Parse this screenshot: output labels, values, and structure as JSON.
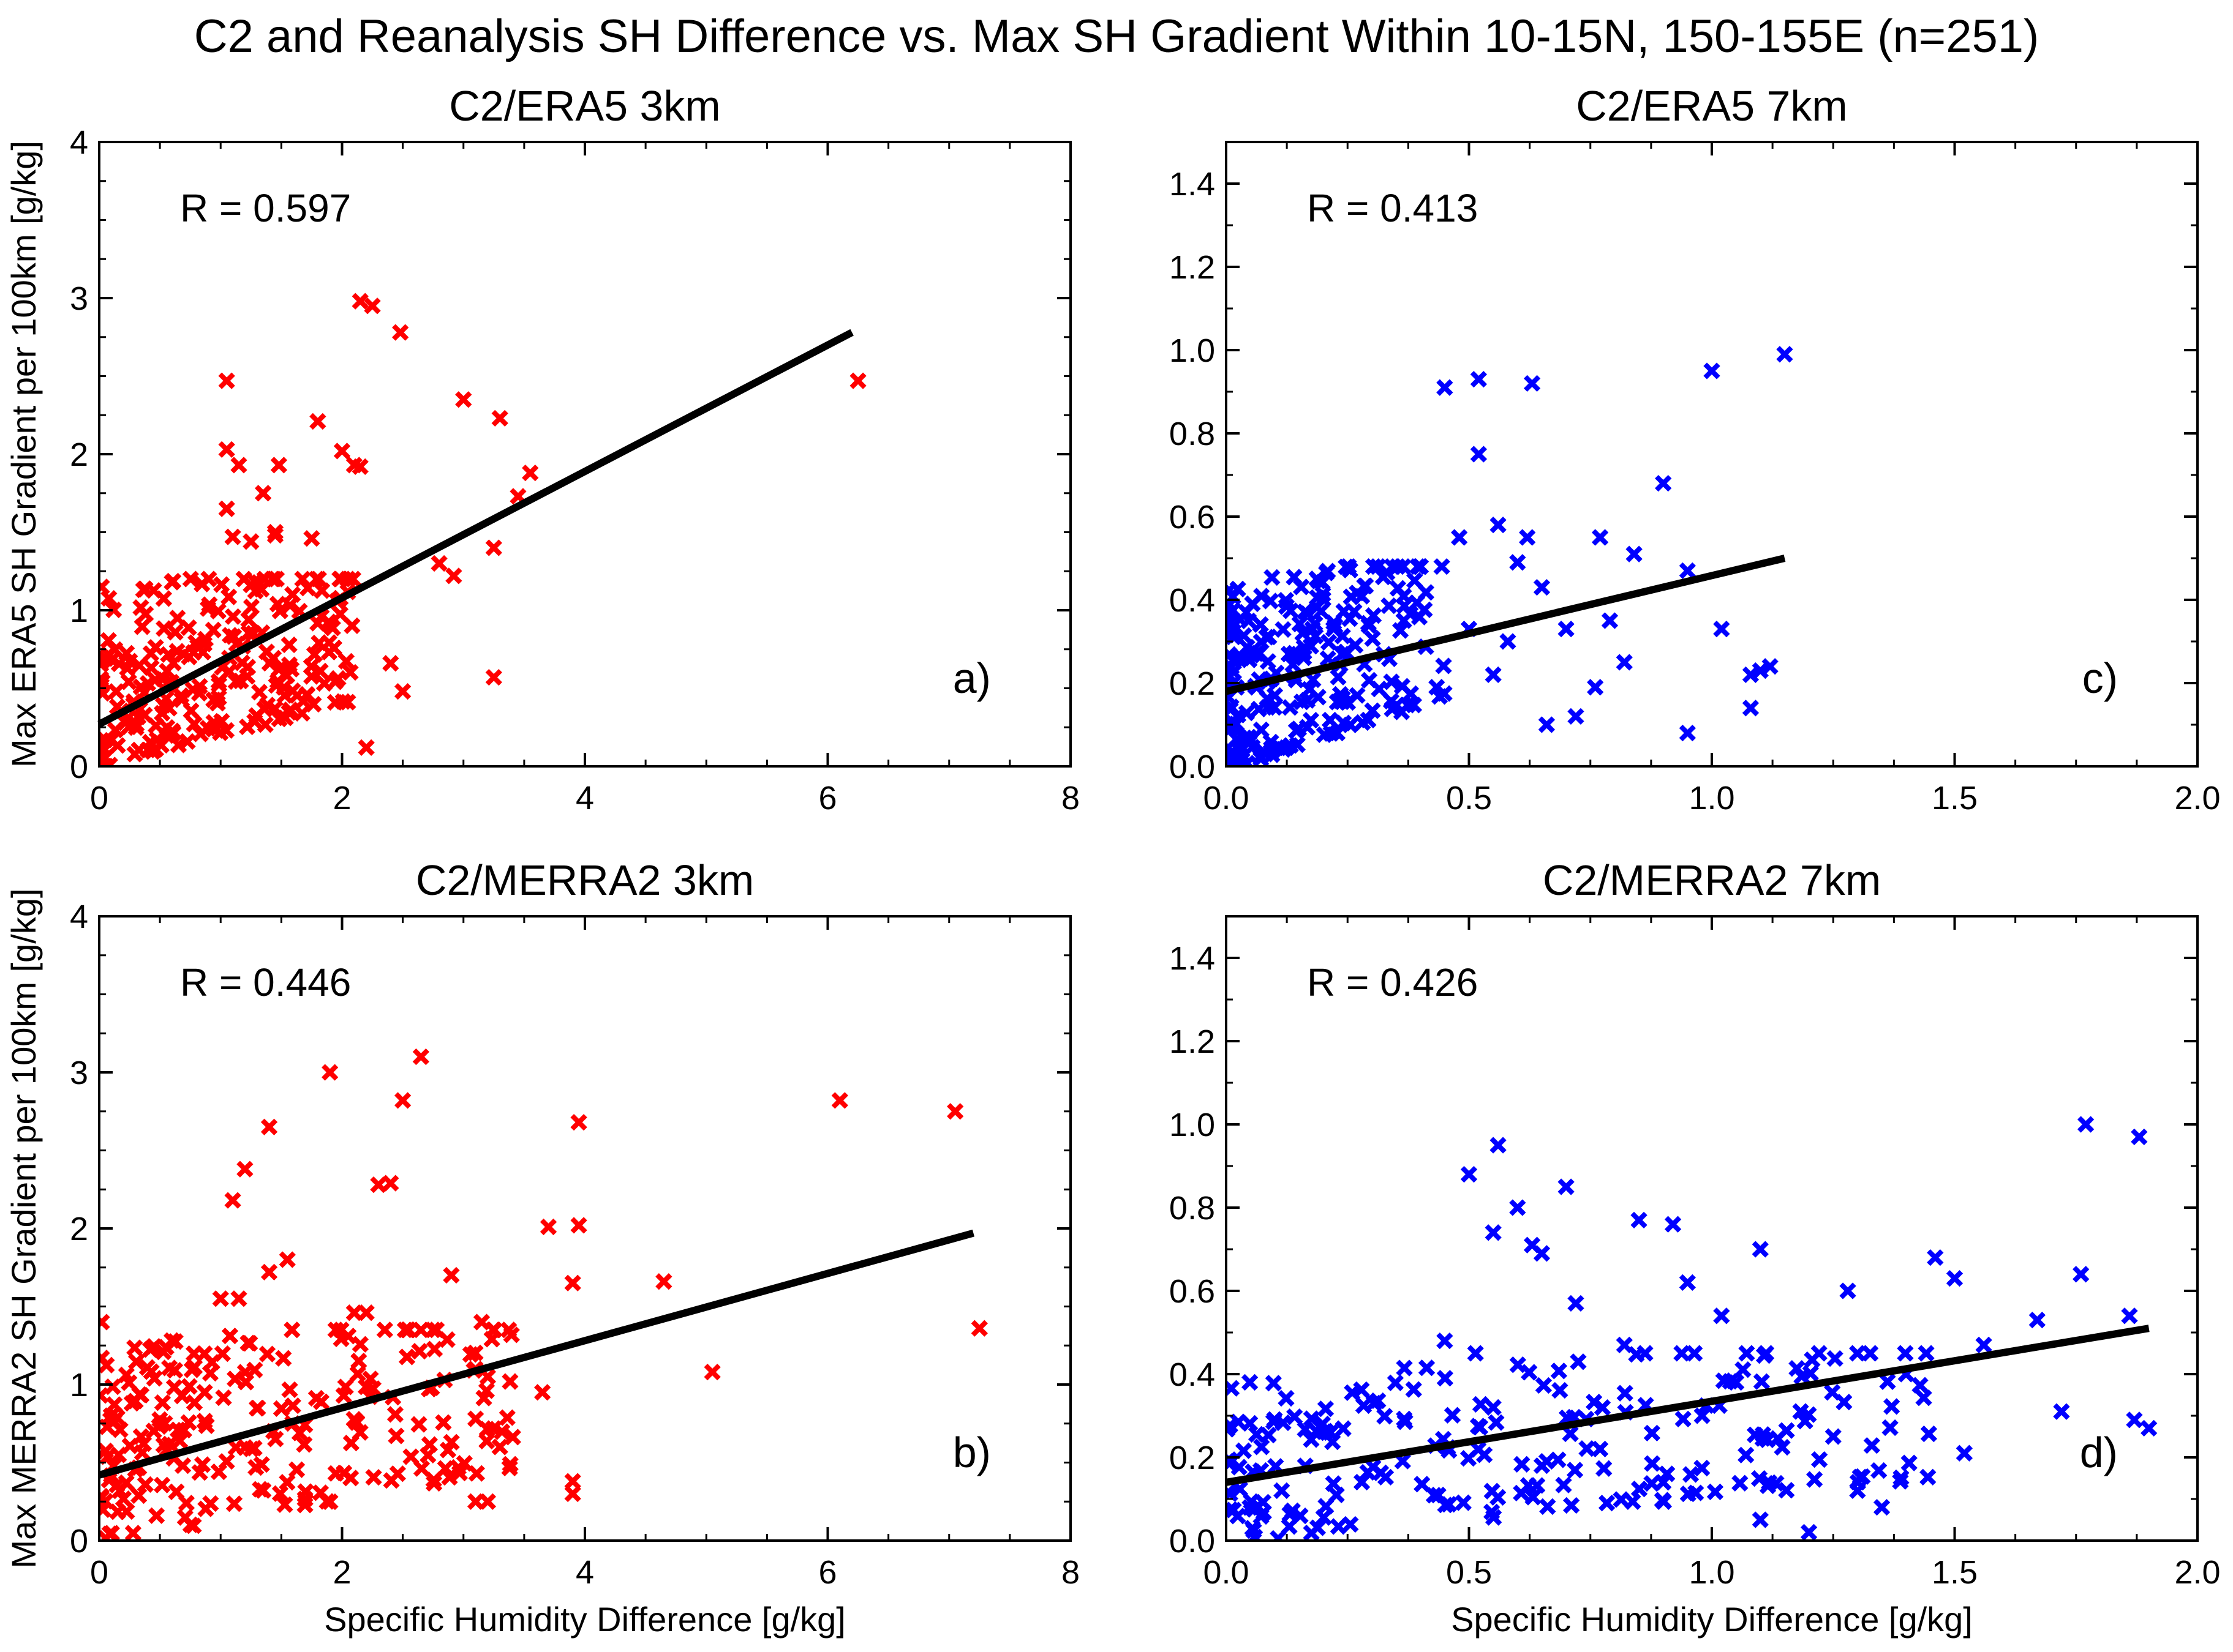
{
  "figure": {
    "title": "C2 and Reanalysis SH Difference vs. Max SH Gradient Within 10-15N, 150-155E (n=251)"
  },
  "chart_data": [
    {
      "type": "scatter",
      "title": "C2/ERA5 3km",
      "label": "a)",
      "r_text": "R = 0.597",
      "xlabel": "",
      "ylabel": "Max ERA5 SH Gradient per 100km [g/kg]",
      "xlim": [
        0,
        8
      ],
      "ylim": [
        0,
        4
      ],
      "xticks": [
        0,
        2,
        4,
        6,
        8
      ],
      "yticks": [
        0,
        1,
        2,
        3,
        4
      ],
      "marker_color": "#ff0000",
      "fit_line": {
        "x": [
          0,
          6.2
        ],
        "y": [
          0.27,
          2.78
        ]
      },
      "highlight_points": [
        [
          2.15,
          2.98
        ],
        [
          2.25,
          2.95
        ],
        [
          2.48,
          2.78
        ],
        [
          1.05,
          2.47
        ],
        [
          6.25,
          2.47
        ],
        [
          3.0,
          2.35
        ],
        [
          3.3,
          2.23
        ],
        [
          1.8,
          2.21
        ],
        [
          1.05,
          2.03
        ],
        [
          2.0,
          2.02
        ],
        [
          1.15,
          1.93
        ],
        [
          2.1,
          1.93
        ],
        [
          1.48,
          1.93
        ],
        [
          2.15,
          1.92
        ],
        [
          3.55,
          1.88
        ],
        [
          1.35,
          1.75
        ],
        [
          3.45,
          1.73
        ],
        [
          1.05,
          1.65
        ],
        [
          1.1,
          1.47
        ],
        [
          1.45,
          1.48
        ],
        [
          1.75,
          1.46
        ],
        [
          1.25,
          1.44
        ],
        [
          1.45,
          1.5
        ],
        [
          3.25,
          1.4
        ],
        [
          2.8,
          1.3
        ],
        [
          2.92,
          1.22
        ],
        [
          2.4,
          0.66
        ],
        [
          3.25,
          0.57
        ],
        [
          2.5,
          0.48
        ],
        [
          2.2,
          0.12
        ],
        [
          0.02,
          1.15
        ],
        [
          0.6,
          1.18
        ]
      ],
      "cluster": {
        "n": 230,
        "x_max": 2.1,
        "y_max": 1.2,
        "seed": 11
      }
    },
    {
      "type": "scatter",
      "title": "C2/ERA5 7km",
      "label": "c)",
      "r_text": "R = 0.413",
      "xlabel": "",
      "ylabel": "",
      "xlim": [
        0,
        2.0
      ],
      "ylim": [
        0,
        1.5
      ],
      "xticks": [
        0.0,
        0.5,
        1.0,
        1.5,
        2.0
      ],
      "yticks": [
        0.0,
        0.2,
        0.4,
        0.6,
        0.8,
        1.0,
        1.2,
        1.4
      ],
      "marker_color": "#0000ff",
      "fit_line": {
        "x": [
          0,
          1.15
        ],
        "y": [
          0.18,
          0.5
        ]
      },
      "highlight_points": [
        [
          1.15,
          0.99
        ],
        [
          1.0,
          0.95
        ],
        [
          0.52,
          0.93
        ],
        [
          0.63,
          0.92
        ],
        [
          0.45,
          0.91
        ],
        [
          0.52,
          0.75
        ],
        [
          0.9,
          0.68
        ],
        [
          0.56,
          0.58
        ],
        [
          0.77,
          0.55
        ],
        [
          0.84,
          0.51
        ],
        [
          0.95,
          0.47
        ],
        [
          1.02,
          0.33
        ],
        [
          1.08,
          0.22
        ],
        [
          1.1,
          0.23
        ],
        [
          1.12,
          0.24
        ],
        [
          1.08,
          0.14
        ],
        [
          0.95,
          0.08
        ],
        [
          0.79,
          0.35
        ],
        [
          0.7,
          0.33
        ],
        [
          0.65,
          0.43
        ],
        [
          0.62,
          0.55
        ],
        [
          0.76,
          0.19
        ],
        [
          0.82,
          0.25
        ],
        [
          0.66,
          0.1
        ],
        [
          0.58,
          0.3
        ],
        [
          0.5,
          0.33
        ],
        [
          0.48,
          0.55
        ],
        [
          0.6,
          0.49
        ],
        [
          0.72,
          0.12
        ],
        [
          0.55,
          0.22
        ]
      ],
      "cluster": {
        "n": 220,
        "x_max": 0.45,
        "y_max": 0.48,
        "seed": 23
      }
    },
    {
      "type": "scatter",
      "title": "C2/MERRA2 3km",
      "label": "b)",
      "r_text": "R = 0.446",
      "xlabel": "Specific Humidity Difference [g/kg]",
      "ylabel": "Max MERRA2 SH Gradient per 100km [g/kg]",
      "xlim": [
        0,
        8
      ],
      "ylim": [
        0,
        4
      ],
      "xticks": [
        0,
        2,
        4,
        6,
        8
      ],
      "yticks": [
        0,
        1,
        2,
        3,
        4
      ],
      "marker_color": "#ff0000",
      "fit_line": {
        "x": [
          0,
          7.2
        ],
        "y": [
          0.42,
          1.97
        ]
      },
      "highlight_points": [
        [
          2.65,
          3.1
        ],
        [
          1.9,
          3.0
        ],
        [
          6.1,
          2.82
        ],
        [
          2.5,
          2.82
        ],
        [
          7.05,
          2.75
        ],
        [
          3.95,
          2.68
        ],
        [
          1.4,
          2.65
        ],
        [
          1.2,
          2.38
        ],
        [
          2.3,
          2.28
        ],
        [
          2.4,
          2.29
        ],
        [
          1.1,
          2.18
        ],
        [
          3.95,
          2.02
        ],
        [
          3.7,
          2.01
        ],
        [
          1.55,
          1.8
        ],
        [
          1.4,
          1.72
        ],
        [
          2.9,
          1.7
        ],
        [
          4.65,
          1.66
        ],
        [
          3.9,
          1.65
        ],
        [
          1.0,
          1.55
        ],
        [
          1.15,
          1.55
        ],
        [
          7.25,
          1.36
        ],
        [
          5.05,
          1.08
        ],
        [
          3.2,
          1.05
        ],
        [
          3.65,
          0.95
        ],
        [
          3.1,
          0.78
        ],
        [
          3.3,
          0.6
        ],
        [
          3.9,
          0.38
        ],
        [
          3.9,
          0.3
        ],
        [
          3.1,
          0.25
        ],
        [
          3.2,
          0.25
        ],
        [
          2.2,
          1.46
        ],
        [
          2.1,
          1.46
        ],
        [
          3.15,
          1.4
        ],
        [
          0.02,
          1.4
        ],
        [
          0.02,
          1.17
        ]
      ],
      "cluster": {
        "n": 220,
        "x_max": 3.5,
        "y_max": 1.35,
        "seed": 37
      }
    },
    {
      "type": "scatter",
      "title": "C2/MERRA2 7km",
      "label": "d)",
      "r_text": "R = 0.426",
      "xlabel": "Specific Humidity Difference [g/kg]",
      "ylabel": "",
      "xlim": [
        0,
        2.0
      ],
      "ylim": [
        0,
        1.5
      ],
      "xticks": [
        0.0,
        0.5,
        1.0,
        1.5,
        2.0
      ],
      "yticks": [
        0.0,
        0.2,
        0.4,
        0.6,
        0.8,
        1.0,
        1.2,
        1.4
      ],
      "marker_color": "#0000ff",
      "fit_line": {
        "x": [
          0,
          1.9
        ],
        "y": [
          0.14,
          0.51
        ]
      },
      "highlight_points": [
        [
          1.77,
          1.0
        ],
        [
          1.88,
          0.97
        ],
        [
          0.56,
          0.95
        ],
        [
          0.5,
          0.88
        ],
        [
          0.7,
          0.85
        ],
        [
          0.85,
          0.77
        ],
        [
          0.92,
          0.76
        ],
        [
          0.6,
          0.8
        ],
        [
          1.1,
          0.7
        ],
        [
          1.46,
          0.68
        ],
        [
          0.63,
          0.71
        ],
        [
          0.65,
          0.69
        ],
        [
          0.55,
          0.74
        ],
        [
          1.76,
          0.64
        ],
        [
          1.5,
          0.63
        ],
        [
          1.28,
          0.6
        ],
        [
          1.86,
          0.54
        ],
        [
          1.67,
          0.53
        ],
        [
          1.02,
          0.54
        ],
        [
          1.56,
          0.47
        ],
        [
          1.9,
          0.27
        ],
        [
          1.87,
          0.29
        ],
        [
          1.72,
          0.31
        ],
        [
          1.52,
          0.21
        ],
        [
          1.2,
          0.02
        ],
        [
          1.1,
          0.05
        ],
        [
          1.35,
          0.08
        ],
        [
          0.72,
          0.57
        ],
        [
          0.82,
          0.47
        ],
        [
          0.95,
          0.62
        ],
        [
          0.45,
          0.48
        ],
        [
          0.55,
          0.32
        ],
        [
          0.98,
          0.3
        ],
        [
          1.25,
          0.25
        ],
        [
          1.4,
          0.4
        ],
        [
          0.77,
          0.22
        ],
        [
          0.9,
          0.14
        ],
        [
          0.65,
          0.18
        ],
        [
          1.05,
          0.38
        ],
        [
          1.3,
          0.12
        ]
      ],
      "cluster": {
        "n": 210,
        "x_max": 1.45,
        "y_max": 0.45,
        "seed": 53
      }
    }
  ]
}
